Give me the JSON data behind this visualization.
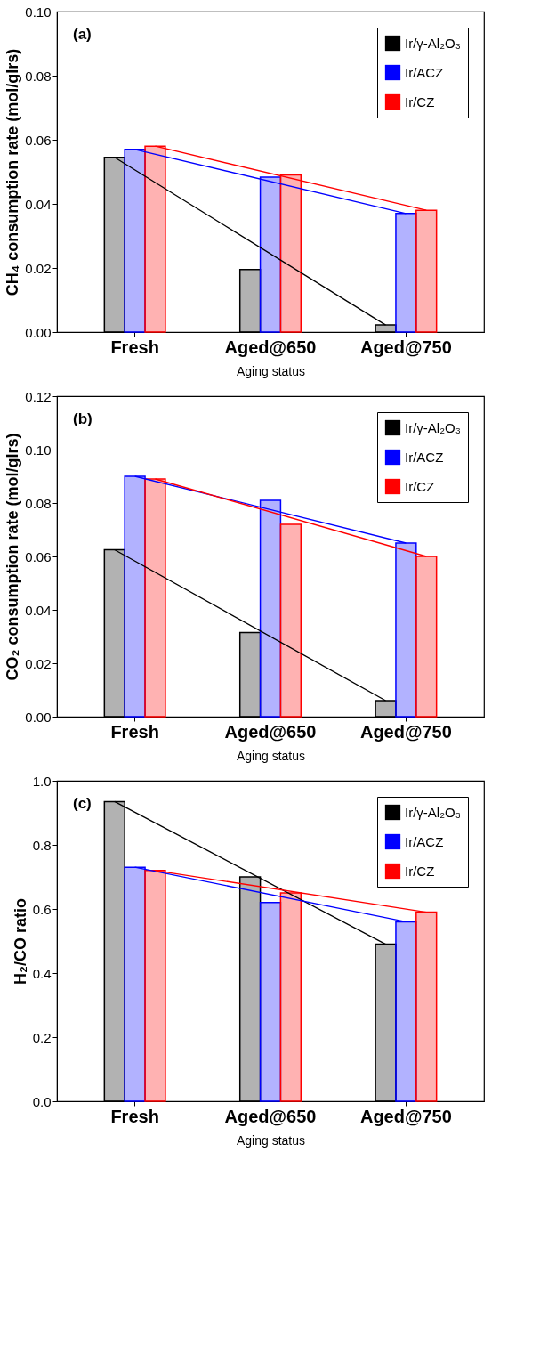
{
  "chart_data": [
    {
      "type": "bar",
      "categories": [
        "Fresh",
        "Aged@650",
        "Aged@750"
      ],
      "xlabel": "Aging status",
      "ylabel": "CH₄ consumption rate (mol/gIrs)",
      "ylim": [
        0,
        0.1
      ],
      "yticks": [
        {
          "value": 0,
          "label": "0.00"
        },
        0.02,
        0.04,
        0.06,
        0.08,
        {
          "value": 0.1,
          "label": "0.10"
        }
      ],
      "grid": false,
      "legend": "top right",
      "annotations": [
        "(a)"
      ],
      "series": [
        {
          "name": "Ir/γ-Al₂O₃",
          "color": "#000000",
          "values": [
            0.0545,
            0.0195,
            0.0022
          ]
        },
        {
          "name": "Ir/ACZ",
          "color": "#0000ff",
          "values": [
            0.057,
            0.0483,
            0.037
          ]
        },
        {
          "name": "Ir/CZ",
          "color": "#ff0000",
          "values": [
            0.058,
            0.049,
            0.038
          ]
        }
      ]
    },
    {
      "type": "bar",
      "categories": [
        "Fresh",
        "Aged@650",
        "Aged@750"
      ],
      "xlabel": "Aging status",
      "ylabel": "CO₂ consumption rate (mol/gIrs)",
      "ylim": [
        0,
        0.12
      ],
      "yticks": [
        {
          "value": 0,
          "label": "0.00"
        },
        0.02,
        0.04,
        0.06,
        0.08,
        {
          "value": 0.1,
          "label": "0.10"
        },
        0.12
      ],
      "grid": false,
      "legend": "top right",
      "annotations": [
        "(b)"
      ],
      "series": [
        {
          "name": "Ir/γ-Al₂O₃",
          "color": "#000000",
          "values": [
            0.0625,
            0.0315,
            0.006
          ]
        },
        {
          "name": "Ir/ACZ",
          "color": "#0000ff",
          "values": [
            0.09,
            0.081,
            0.065
          ]
        },
        {
          "name": "Ir/CZ",
          "color": "#ff0000",
          "values": [
            0.089,
            0.072,
            0.06
          ]
        }
      ]
    },
    {
      "type": "bar",
      "categories": [
        "Fresh",
        "Aged@650",
        "Aged@750"
      ],
      "xlabel": "Aging status",
      "ylabel": "H₂/CO ratio",
      "ylim": [
        0,
        1.0
      ],
      "yticks": [
        {
          "value": 0,
          "label": "0.0"
        },
        0.2,
        0.4,
        0.6,
        0.8,
        {
          "value": 1,
          "label": "1.0"
        }
      ],
      "grid": false,
      "legend": "top right",
      "annotations": [
        "(c)"
      ],
      "series": [
        {
          "name": "Ir/γ-Al₂O₃",
          "color": "#000000",
          "values": [
            0.935,
            0.7,
            0.49
          ]
        },
        {
          "name": "Ir/ACZ",
          "color": "#0000ff",
          "values": [
            0.73,
            0.62,
            0.56
          ]
        },
        {
          "name": "Ir/CZ",
          "color": "#ff0000",
          "values": [
            0.72,
            0.65,
            0.59
          ]
        }
      ]
    }
  ]
}
